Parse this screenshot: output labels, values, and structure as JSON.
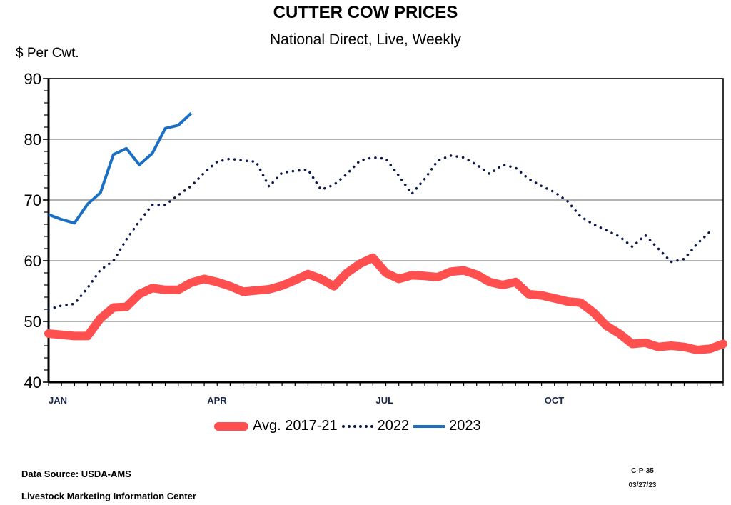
{
  "chart_data": {
    "type": "line",
    "title": "CUTTER COW PRICES",
    "subtitle": "National Direct, Live, Weekly",
    "ylabel": "$ Per Cwt.",
    "xlabel": "",
    "ylim": [
      40,
      90
    ],
    "yticks": [
      "40",
      "50",
      "60",
      "70",
      "80",
      "90"
    ],
    "xlim_weeks": [
      0,
      52
    ],
    "month_labels": [
      {
        "label": "JAN",
        "week": 0
      },
      {
        "label": "APR",
        "week": 13
      },
      {
        "label": "JUL",
        "week": 26
      },
      {
        "label": "OCT",
        "week": 39
      }
    ],
    "grid": true,
    "legend_position": "bottom",
    "series": [
      {
        "name": "Avg. 2017-21",
        "color": "#ff4f4f",
        "style": "thick-solid",
        "values": [
          48,
          47.8,
          47.6,
          47.6,
          50.5,
          52.3,
          52.4,
          54.5,
          55.5,
          55.2,
          55.2,
          56.4,
          57,
          56.5,
          55.8,
          54.9,
          55.1,
          55.3,
          55.9,
          56.8,
          57.8,
          57,
          55.8,
          58,
          59.5,
          60.5,
          58,
          57,
          57.6,
          57.5,
          57.3,
          58.2,
          58.4,
          57.7,
          56.5,
          56,
          56.5,
          54.5,
          54.3,
          53.8,
          53.3,
          53.1,
          51.5,
          49.3,
          48,
          46.3,
          46.5,
          45.8,
          46,
          45.8,
          45.3,
          45.5,
          46.3
        ]
      },
      {
        "name": "2022",
        "color": "#0b1a4a",
        "style": "dotted",
        "values": [
          52,
          52.6,
          52.9,
          55.5,
          58.5,
          60,
          63.5,
          66.5,
          69.2,
          69.2,
          70.8,
          72.3,
          74.5,
          76.3,
          76.8,
          76.5,
          76.3,
          72.2,
          74.5,
          74.8,
          75,
          71.7,
          72.5,
          74.3,
          76.5,
          77,
          76.8,
          74,
          71,
          73.5,
          76.5,
          77.3,
          77,
          75.8,
          74.3,
          75.8,
          75.3,
          73.5,
          72.3,
          71.3,
          69.8,
          67.3,
          66,
          65,
          64,
          62.3,
          64.2,
          62,
          59.8,
          60.3,
          62.8,
          64.8
        ]
      },
      {
        "name": "2023",
        "color": "#1a6fc4",
        "style": "solid",
        "values": [
          67.6,
          66.8,
          66.2,
          69.3,
          71.2,
          77.5,
          78.5,
          75.8,
          77.7,
          81.8,
          82.3,
          84.3
        ]
      }
    ]
  },
  "footer": {
    "source": "Data Source:  USDA-AMS",
    "org": "Livestock Marketing Information Center",
    "code": "C-P-35",
    "date": "03/27/23"
  }
}
